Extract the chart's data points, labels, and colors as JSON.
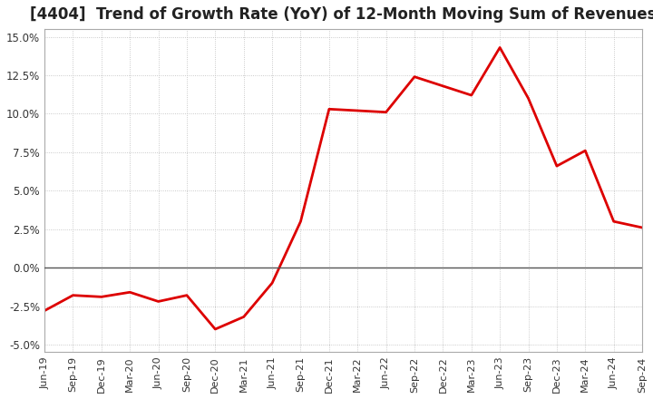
{
  "title": "[4404]  Trend of Growth Rate (YoY) of 12-Month Moving Sum of Revenues",
  "title_fontsize": 12,
  "background_color": "#ffffff",
  "grid_color": "#bbbbbb",
  "line_color": "#dd0000",
  "ylim": [
    -0.055,
    0.155
  ],
  "yticks": [
    -0.05,
    -0.025,
    0.0,
    0.025,
    0.05,
    0.075,
    0.1,
    0.125,
    0.15
  ],
  "x_labels": [
    "Jun-19",
    "Sep-19",
    "Dec-19",
    "Mar-20",
    "Jun-20",
    "Sep-20",
    "Dec-20",
    "Mar-21",
    "Jun-21",
    "Sep-21",
    "Dec-21",
    "Mar-22",
    "Jun-22",
    "Sep-22",
    "Dec-22",
    "Mar-23",
    "Jun-23",
    "Sep-23",
    "Dec-23",
    "Mar-24",
    "Jun-24",
    "Sep-24"
  ],
  "y_values": [
    -0.028,
    -0.018,
    -0.019,
    -0.016,
    -0.022,
    -0.018,
    -0.04,
    -0.032,
    -0.01,
    0.03,
    0.103,
    0.102,
    0.101,
    0.124,
    0.118,
    0.112,
    0.143,
    0.11,
    0.066,
    0.076,
    0.03,
    0.026
  ]
}
